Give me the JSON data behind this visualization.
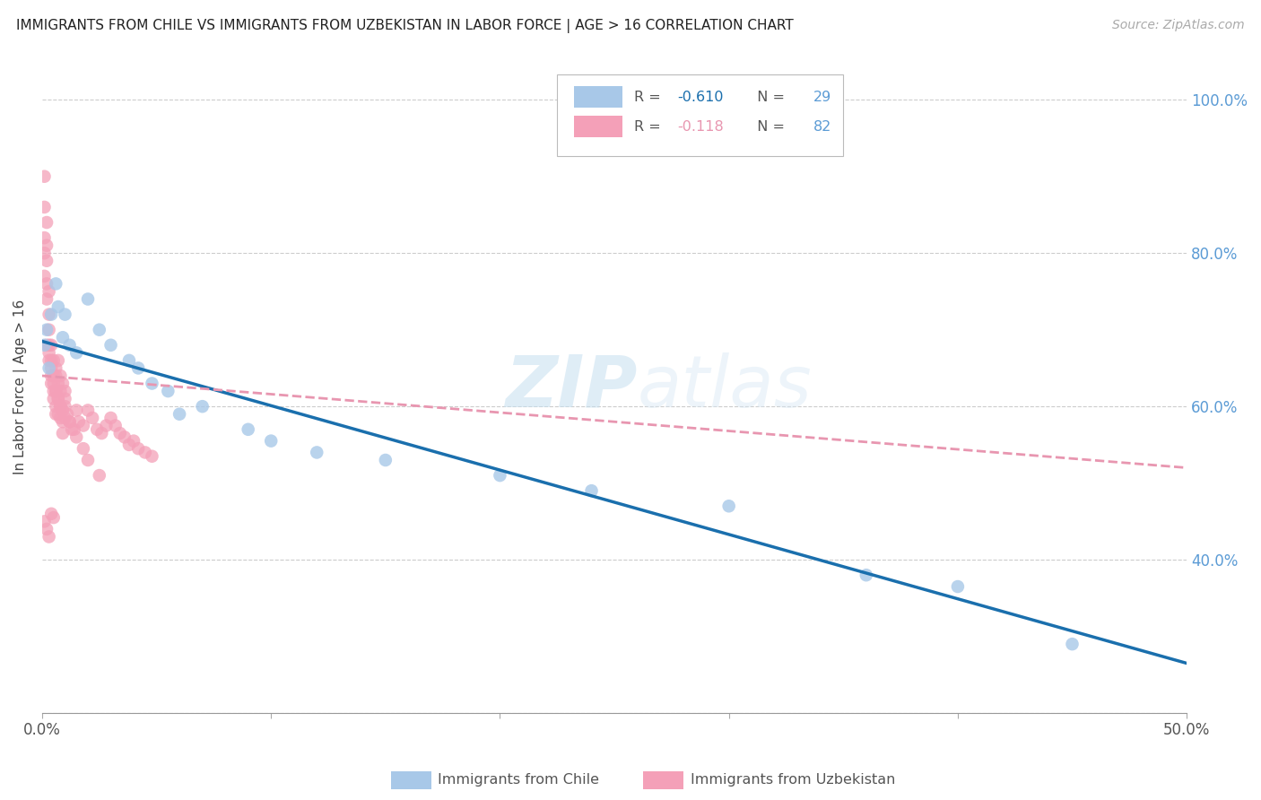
{
  "title": "IMMIGRANTS FROM CHILE VS IMMIGRANTS FROM UZBEKISTAN IN LABOR FORCE | AGE > 16 CORRELATION CHART",
  "source": "Source: ZipAtlas.com",
  "ylabel": "In Labor Force | Age > 16",
  "xlim": [
    0.0,
    0.5
  ],
  "ylim": [
    0.2,
    1.05
  ],
  "xtick_vals": [
    0.0,
    0.1,
    0.2,
    0.3,
    0.4,
    0.5
  ],
  "xtick_labels": [
    "0.0%",
    "",
    "",
    "",
    "",
    "50.0%"
  ],
  "ytick_right_vals": [
    0.4,
    0.6,
    0.8,
    1.0
  ],
  "ytick_right_labels": [
    "40.0%",
    "60.0%",
    "80.0%",
    "100.0%"
  ],
  "background_color": "#ffffff",
  "watermark_zip": "ZIP",
  "watermark_atlas": "atlas",
  "chile_color": "#a8c8e8",
  "uzbekistan_color": "#f4a0b8",
  "chile_line_color": "#1a6fad",
  "uzbekistan_line_color": "#e896b0",
  "chile_R": -0.61,
  "chile_N": 29,
  "uzbekistan_R": -0.118,
  "uzbekistan_N": 82,
  "legend_label_chile": "Immigrants from Chile",
  "legend_label_uzbekistan": "Immigrants from Uzbekistan",
  "chile_scatter_x": [
    0.001,
    0.002,
    0.003,
    0.004,
    0.006,
    0.007,
    0.009,
    0.01,
    0.012,
    0.015,
    0.02,
    0.025,
    0.03,
    0.038,
    0.042,
    0.048,
    0.055,
    0.06,
    0.07,
    0.09,
    0.1,
    0.12,
    0.15,
    0.2,
    0.24,
    0.3,
    0.36,
    0.4,
    0.45
  ],
  "chile_scatter_y": [
    0.68,
    0.7,
    0.65,
    0.72,
    0.76,
    0.73,
    0.69,
    0.72,
    0.68,
    0.67,
    0.74,
    0.7,
    0.68,
    0.66,
    0.65,
    0.63,
    0.62,
    0.59,
    0.6,
    0.57,
    0.555,
    0.54,
    0.53,
    0.51,
    0.49,
    0.47,
    0.38,
    0.365,
    0.29
  ],
  "uzbekistan_scatter_x": [
    0.001,
    0.001,
    0.001,
    0.001,
    0.001,
    0.002,
    0.002,
    0.002,
    0.002,
    0.002,
    0.003,
    0.003,
    0.003,
    0.003,
    0.003,
    0.004,
    0.004,
    0.004,
    0.004,
    0.005,
    0.005,
    0.005,
    0.005,
    0.006,
    0.006,
    0.006,
    0.006,
    0.007,
    0.007,
    0.007,
    0.008,
    0.008,
    0.008,
    0.009,
    0.009,
    0.01,
    0.01,
    0.011,
    0.012,
    0.013,
    0.014,
    0.015,
    0.016,
    0.018,
    0.02,
    0.022,
    0.024,
    0.026,
    0.028,
    0.03,
    0.032,
    0.034,
    0.036,
    0.038,
    0.04,
    0.042,
    0.045,
    0.048,
    0.001,
    0.002,
    0.003,
    0.004,
    0.005,
    0.006,
    0.007,
    0.008,
    0.009,
    0.01,
    0.012,
    0.015,
    0.018,
    0.02,
    0.025,
    0.002,
    0.003,
    0.004,
    0.005,
    0.006,
    0.007,
    0.008,
    0.009,
    0.01
  ],
  "uzbekistan_scatter_y": [
    0.9,
    0.86,
    0.82,
    0.8,
    0.77,
    0.84,
    0.81,
    0.79,
    0.76,
    0.74,
    0.75,
    0.72,
    0.7,
    0.68,
    0.67,
    0.68,
    0.66,
    0.64,
    0.63,
    0.66,
    0.64,
    0.62,
    0.61,
    0.64,
    0.62,
    0.6,
    0.59,
    0.63,
    0.61,
    0.59,
    0.62,
    0.6,
    0.585,
    0.58,
    0.565,
    0.62,
    0.6,
    0.59,
    0.58,
    0.57,
    0.57,
    0.595,
    0.58,
    0.575,
    0.595,
    0.585,
    0.57,
    0.565,
    0.575,
    0.585,
    0.575,
    0.565,
    0.56,
    0.55,
    0.555,
    0.545,
    0.54,
    0.535,
    0.45,
    0.44,
    0.43,
    0.46,
    0.455,
    0.65,
    0.66,
    0.64,
    0.63,
    0.61,
    0.58,
    0.56,
    0.545,
    0.53,
    0.51,
    0.68,
    0.66,
    0.65,
    0.63,
    0.62,
    0.61,
    0.6,
    0.595,
    0.585
  ],
  "chile_line_x": [
    0.0,
    0.5
  ],
  "chile_line_y": [
    0.685,
    0.265
  ],
  "uzbekistan_line_x": [
    0.0,
    0.5
  ],
  "uzbekistan_line_y": [
    0.64,
    0.52
  ]
}
